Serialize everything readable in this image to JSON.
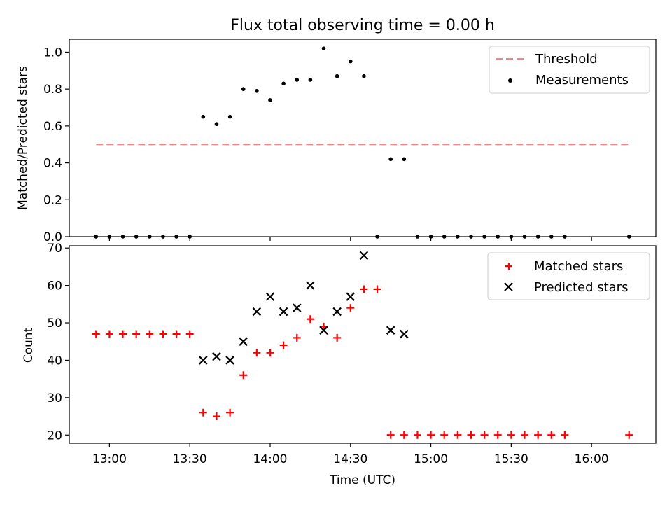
{
  "chart_data": [
    {
      "type": "scatter",
      "title": "Flux total observing time = 0.00 h",
      "xlabel": "",
      "ylabel": "Matched/Predicted stars",
      "ylim": [
        0,
        1.07
      ],
      "yticks": [
        0.0,
        0.2,
        0.4,
        0.6,
        0.8,
        1.0
      ],
      "yticklabels": [
        "0.0",
        "0.2",
        "0.4",
        "0.6",
        "0.8",
        "1.0"
      ],
      "legend_position": "top-right",
      "threshold": {
        "name": "Threshold",
        "value": 0.5,
        "x_start": "12:55",
        "x_end": "16:14",
        "color": "#ff8080",
        "style": "dashed"
      },
      "series": [
        {
          "name": "Measurements",
          "color": "#000000",
          "marker": "dot",
          "points": [
            [
              "12:55",
              0.0
            ],
            [
              "13:00",
              0.0
            ],
            [
              "13:05",
              0.0
            ],
            [
              "13:10",
              0.0
            ],
            [
              "13:15",
              0.0
            ],
            [
              "13:20",
              0.0
            ],
            [
              "13:25",
              0.0
            ],
            [
              "13:30",
              0.0
            ],
            [
              "13:35",
              0.65
            ],
            [
              "13:40",
              0.61
            ],
            [
              "13:45",
              0.65
            ],
            [
              "13:50",
              0.8
            ],
            [
              "13:55",
              0.79
            ],
            [
              "14:00",
              0.74
            ],
            [
              "14:05",
              0.83
            ],
            [
              "14:10",
              0.85
            ],
            [
              "14:15",
              0.85
            ],
            [
              "14:20",
              1.02
            ],
            [
              "14:25",
              0.87
            ],
            [
              "14:30",
              0.95
            ],
            [
              "14:35",
              0.87
            ],
            [
              "14:40",
              0.0
            ],
            [
              "14:45",
              0.42
            ],
            [
              "14:50",
              0.42
            ],
            [
              "14:55",
              0.0
            ],
            [
              "15:00",
              0.0
            ],
            [
              "15:05",
              0.0
            ],
            [
              "15:10",
              0.0
            ],
            [
              "15:15",
              0.0
            ],
            [
              "15:20",
              0.0
            ],
            [
              "15:25",
              0.0
            ],
            [
              "15:30",
              0.0
            ],
            [
              "15:35",
              0.0
            ],
            [
              "15:40",
              0.0
            ],
            [
              "15:45",
              0.0
            ],
            [
              "15:50",
              0.0
            ],
            [
              "16:14",
              0.0
            ]
          ]
        }
      ]
    },
    {
      "type": "scatter",
      "title": "",
      "xlabel": "Time (UTC)",
      "ylabel": "Count",
      "ylim": [
        17.8,
        70.6
      ],
      "yticks": [
        20,
        30,
        40,
        50,
        60,
        70
      ],
      "yticklabels": [
        "20",
        "30",
        "40",
        "50",
        "60",
        "70"
      ],
      "xticks": [
        "13:00",
        "13:30",
        "14:00",
        "14:30",
        "15:00",
        "15:30",
        "16:00"
      ],
      "xlim": [
        "12:45",
        "16:24"
      ],
      "legend_position": "top-right",
      "series": [
        {
          "name": "Matched stars",
          "color": "#ff0000",
          "marker": "plus",
          "points": [
            [
              "12:55",
              47
            ],
            [
              "13:00",
              47
            ],
            [
              "13:05",
              47
            ],
            [
              "13:10",
              47
            ],
            [
              "13:15",
              47
            ],
            [
              "13:20",
              47
            ],
            [
              "13:25",
              47
            ],
            [
              "13:30",
              47
            ],
            [
              "13:35",
              26
            ],
            [
              "13:40",
              25
            ],
            [
              "13:45",
              26
            ],
            [
              "13:50",
              36
            ],
            [
              "13:55",
              42
            ],
            [
              "14:00",
              42
            ],
            [
              "14:05",
              44
            ],
            [
              "14:10",
              46
            ],
            [
              "14:15",
              51
            ],
            [
              "14:20",
              49
            ],
            [
              "14:25",
              46
            ],
            [
              "14:30",
              54
            ],
            [
              "14:35",
              59
            ],
            [
              "14:40",
              59
            ],
            [
              "14:45",
              20
            ],
            [
              "14:50",
              20
            ],
            [
              "14:55",
              20
            ],
            [
              "15:00",
              20
            ],
            [
              "15:05",
              20
            ],
            [
              "15:10",
              20
            ],
            [
              "15:15",
              20
            ],
            [
              "15:20",
              20
            ],
            [
              "15:25",
              20
            ],
            [
              "15:30",
              20
            ],
            [
              "15:35",
              20
            ],
            [
              "15:40",
              20
            ],
            [
              "15:45",
              20
            ],
            [
              "15:50",
              20
            ],
            [
              "16:14",
              20
            ]
          ]
        },
        {
          "name": "Predicted stars",
          "color": "#000000",
          "marker": "x",
          "points": [
            [
              "13:35",
              40
            ],
            [
              "13:40",
              41
            ],
            [
              "13:45",
              40
            ],
            [
              "13:50",
              45
            ],
            [
              "13:55",
              53
            ],
            [
              "14:00",
              57
            ],
            [
              "14:05",
              53
            ],
            [
              "14:10",
              54
            ],
            [
              "14:15",
              60
            ],
            [
              "14:20",
              48
            ],
            [
              "14:25",
              53
            ],
            [
              "14:30",
              57
            ],
            [
              "14:35",
              68
            ],
            [
              "14:45",
              48
            ],
            [
              "14:50",
              47
            ]
          ]
        }
      ]
    }
  ]
}
